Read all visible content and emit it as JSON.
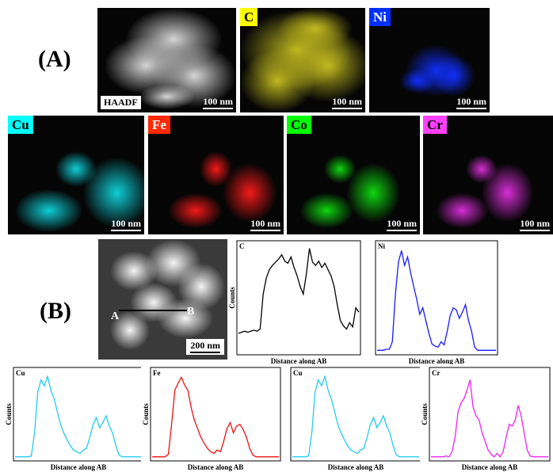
{
  "panel_a": {
    "label": "(A)",
    "maps": [
      {
        "id": "haadf",
        "tag": "HAADF",
        "scale": "100 nm",
        "color": "#e0e0e0",
        "tag_bg": "#ffffff",
        "tag_fg": "#000000"
      },
      {
        "id": "c",
        "tag": "C",
        "scale": "100 nm",
        "color": "#c8c020",
        "tag_bg": "#ffff00",
        "tag_fg": "#000000"
      },
      {
        "id": "ni",
        "tag": "Ni",
        "scale": "100 nm",
        "color": "#1030ff",
        "tag_bg": "#0030ff",
        "tag_fg": "#ffffff"
      },
      {
        "id": "cu",
        "tag": "Cu",
        "scale": "100 nm",
        "color": "#10d8e0",
        "tag_bg": "#00ffff",
        "tag_fg": "#000000"
      },
      {
        "id": "fe",
        "tag": "Fe",
        "scale": "100 nm",
        "color": "#ff1a1a",
        "tag_bg": "#ff2a00",
        "tag_fg": "#ffffff"
      },
      {
        "id": "co",
        "tag": "Co",
        "scale": "100 nm",
        "color": "#10e010",
        "tag_bg": "#00ff00",
        "tag_fg": "#000000"
      },
      {
        "id": "cr",
        "tag": "Cr",
        "scale": "100 nm",
        "color": "#e030e0",
        "tag_bg": "#ff40ff",
        "tag_fg": "#000000"
      }
    ]
  },
  "panel_b": {
    "label": "(B)",
    "image": {
      "scale": "200 nm",
      "point_a": "A",
      "point_b": "B"
    },
    "plots": [
      {
        "id": "c",
        "element": "C",
        "color": "#000000",
        "xlabel": "Distance along AB",
        "ylabel": "Counts"
      },
      {
        "id": "ni",
        "element": "Ni",
        "color": "#1a1aff",
        "xlabel": "Distance along AB",
        "ylabel": ""
      },
      {
        "id": "cu1",
        "element": "Cu",
        "color": "#22ccee",
        "xlabel": "Distance along AB",
        "ylabel": "Counts"
      },
      {
        "id": "fe",
        "element": "Fe",
        "color": "#ee1111",
        "xlabel": "Distance along AB",
        "ylabel": "Counts"
      },
      {
        "id": "cu2",
        "element": "Cu",
        "color": "#22ccee",
        "xlabel": "Distance along AB",
        "ylabel": ""
      },
      {
        "id": "cr",
        "element": "Cr",
        "color": "#ee22ee",
        "xlabel": "Distance along AB",
        "ylabel": "Counts"
      }
    ]
  },
  "chart_data": [
    {
      "type": "line",
      "title": "C",
      "xlabel": "Distance along AB",
      "ylabel": "Counts",
      "series": [
        {
          "values": [
            0.18,
            0.19,
            0.2,
            0.19,
            0.2,
            0.21,
            0.2,
            0.22,
            0.55,
            0.7,
            0.78,
            0.82,
            0.85,
            0.88,
            0.92,
            0.86,
            0.84,
            0.9,
            0.8,
            0.72,
            0.62,
            0.55,
            0.74,
            0.98,
            0.85,
            0.82,
            0.86,
            0.8,
            0.84,
            0.78,
            0.72,
            0.62,
            0.45,
            0.3,
            0.25,
            0.22,
            0.28,
            0.24,
            0.42,
            0.38
          ]
        }
      ]
    },
    {
      "type": "line",
      "title": "Ni",
      "xlabel": "Distance along AB",
      "ylabel": "",
      "series": [
        {
          "values": [
            0.02,
            0.02,
            0.02,
            0.03,
            0.03,
            0.1,
            0.55,
            0.85,
            0.96,
            0.82,
            0.9,
            0.75,
            0.62,
            0.5,
            0.36,
            0.42,
            0.3,
            0.18,
            0.08,
            0.06,
            0.05,
            0.1,
            0.07,
            0.2,
            0.35,
            0.42,
            0.4,
            0.32,
            0.38,
            0.45,
            0.3,
            0.2,
            0.05,
            0.02,
            0.02,
            0.02,
            0.02,
            0.02,
            0.02,
            0.02
          ]
        }
      ]
    },
    {
      "type": "line",
      "title": "Cu",
      "xlabel": "Distance along AB",
      "ylabel": "Counts",
      "series": [
        {
          "values": [
            0.02,
            0.02,
            0.02,
            0.02,
            0.02,
            0.03,
            0.3,
            0.78,
            0.92,
            0.85,
            0.96,
            0.8,
            0.7,
            0.55,
            0.4,
            0.3,
            0.22,
            0.15,
            0.1,
            0.08,
            0.06,
            0.1,
            0.12,
            0.25,
            0.4,
            0.48,
            0.36,
            0.42,
            0.5,
            0.38,
            0.3,
            0.15,
            0.04,
            0.02,
            0.02,
            0.02,
            0.02,
            0.02,
            0.02,
            0.02
          ]
        }
      ]
    },
    {
      "type": "line",
      "title": "Fe",
      "xlabel": "Distance along AB",
      "ylabel": "Counts",
      "series": [
        {
          "values": [
            0.02,
            0.02,
            0.02,
            0.02,
            0.02,
            0.05,
            0.4,
            0.8,
            0.88,
            0.95,
            0.86,
            0.8,
            0.6,
            0.45,
            0.35,
            0.25,
            0.18,
            0.12,
            0.08,
            0.06,
            0.1,
            0.08,
            0.2,
            0.35,
            0.42,
            0.3,
            0.38,
            0.4,
            0.34,
            0.25,
            0.12,
            0.04,
            0.02,
            0.02,
            0.02,
            0.02,
            0.02,
            0.02,
            0.02,
            0.02
          ]
        }
      ]
    },
    {
      "type": "line",
      "title": "Cu",
      "xlabel": "Distance along AB",
      "ylabel": "",
      "series": [
        {
          "values": [
            0.02,
            0.02,
            0.02,
            0.02,
            0.02,
            0.03,
            0.3,
            0.78,
            0.92,
            0.85,
            0.96,
            0.8,
            0.7,
            0.55,
            0.4,
            0.3,
            0.22,
            0.15,
            0.1,
            0.08,
            0.06,
            0.1,
            0.12,
            0.25,
            0.4,
            0.48,
            0.36,
            0.42,
            0.5,
            0.38,
            0.3,
            0.15,
            0.04,
            0.02,
            0.02,
            0.02,
            0.02,
            0.02,
            0.02,
            0.02
          ]
        }
      ]
    },
    {
      "type": "line",
      "title": "Cr",
      "xlabel": "Distance along AB",
      "ylabel": "Counts",
      "series": [
        {
          "values": [
            0.02,
            0.02,
            0.02,
            0.02,
            0.02,
            0.03,
            0.02,
            0.08,
            0.25,
            0.55,
            0.65,
            0.7,
            0.8,
            0.92,
            0.6,
            0.5,
            0.45,
            0.3,
            0.2,
            0.1,
            0.05,
            0.02,
            0.06,
            0.02,
            0.08,
            0.25,
            0.4,
            0.38,
            0.45,
            0.62,
            0.5,
            0.3,
            0.1,
            0.03,
            0.02,
            0.02,
            0.02,
            0.02,
            0.02,
            0.02
          ]
        }
      ]
    }
  ]
}
